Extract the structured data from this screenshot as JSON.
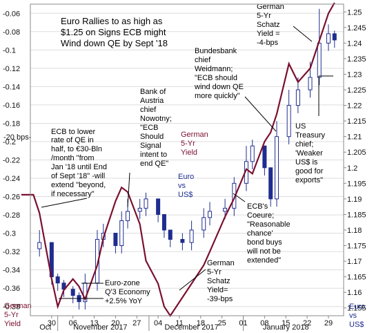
{
  "chart_data": {
    "type": "line",
    "title": "Euro Rallies to as high as $1.25 on Signs ECB might Wind down QE by Sept '18",
    "left_axis_label": "German 5-Yr Yield",
    "right_axis_label": "Euro vs US$",
    "left_unit": "-20 bps-",
    "left_ticks": [
      "-0.06",
      "-0.08",
      "-0.1",
      "-0.12",
      "-0.14",
      "-0.16",
      "-0.18",
      "-0.2",
      "-0.22",
      "-0.24",
      "-0.26",
      "-0.28",
      "-0.3",
      "-0.32",
      "-0.34",
      "-0.36",
      "-0.38"
    ],
    "right_ticks": [
      "1.25",
      "1.245",
      "1.24",
      "1.235",
      "1.23",
      "1.225",
      "1.22",
      "1.215",
      "1.21",
      "1.205",
      "1.2",
      "1.195",
      "1.19",
      "1.185",
      "1.18",
      "1.175",
      "1.17",
      "1.165",
      "1.16",
      "1.155"
    ],
    "ylim_left": [
      -0.39,
      -0.05
    ],
    "ylim_right": [
      1.1525,
      1.2525
    ],
    "x_day_labels": [
      "30",
      "06",
      "13",
      "20",
      "27",
      "04",
      "11",
      "18",
      "25",
      "01",
      "08",
      "15",
      "22",
      "29"
    ],
    "x_month_labels": [
      "Oct",
      "November 2017",
      "December 2017",
      "January 2018"
    ],
    "series": [
      {
        "name": "German 5-Yr Yield",
        "color": "#7a0f2e",
        "axis": "left",
        "dates": [
          "2017-10-20",
          "2017-10-24",
          "2017-10-26",
          "2017-10-30",
          "2017-11-01",
          "2017-11-03",
          "2017-11-06",
          "2017-11-08",
          "2017-11-10",
          "2017-11-14",
          "2017-11-16",
          "2017-11-20",
          "2017-11-22",
          "2017-11-24",
          "2017-11-28",
          "2017-11-30",
          "2017-12-04",
          "2017-12-06",
          "2017-12-08",
          "2017-12-12",
          "2017-12-15",
          "2017-12-19",
          "2017-12-21",
          "2017-12-26",
          "2017-12-29",
          "2018-01-02",
          "2018-01-04",
          "2018-01-08",
          "2018-01-10",
          "2018-01-12",
          "2018-01-16",
          "2018-01-19",
          "2018-01-23",
          "2018-01-26",
          "2018-01-29",
          "2018-01-31"
        ],
        "values": [
          -0.258,
          -0.258,
          -0.278,
          -0.35,
          -0.38,
          -0.362,
          -0.35,
          -0.358,
          -0.372,
          -0.335,
          -0.305,
          -0.265,
          -0.25,
          -0.255,
          -0.29,
          -0.33,
          -0.355,
          -0.38,
          -0.39,
          -0.37,
          -0.355,
          -0.335,
          -0.32,
          -0.282,
          -0.262,
          -0.23,
          -0.235,
          -0.2,
          -0.19,
          -0.17,
          -0.115,
          -0.135,
          -0.12,
          -0.09,
          -0.06,
          -0.038
        ]
      },
      {
        "name": "Euro vs US$",
        "color": "#1f2d8f",
        "axis": "right",
        "style": "candlestick",
        "dates": [
          "2017-10-26",
          "2017-10-30",
          "2017-11-01",
          "2017-11-03",
          "2017-11-06",
          "2017-11-08",
          "2017-11-10",
          "2017-11-14",
          "2017-11-16",
          "2017-11-20",
          "2017-11-22",
          "2017-11-24",
          "2017-11-28",
          "2017-11-30",
          "2017-12-04",
          "2017-12-06",
          "2017-12-08",
          "2017-12-12",
          "2017-12-15",
          "2017-12-19",
          "2017-12-21",
          "2017-12-26",
          "2017-12-29",
          "2018-01-02",
          "2018-01-04",
          "2018-01-08",
          "2018-01-10",
          "2018-01-12",
          "2018-01-16",
          "2018-01-19",
          "2018-01-23",
          "2018-01-26",
          "2018-01-29",
          "2018-01-31"
        ],
        "close": [
          1.176,
          1.165,
          1.163,
          1.161,
          1.159,
          1.157,
          1.163,
          1.177,
          1.179,
          1.175,
          1.183,
          1.186,
          1.187,
          1.19,
          1.185,
          1.18,
          1.177,
          1.176,
          1.18,
          1.184,
          1.186,
          1.187,
          1.195,
          1.202,
          1.207,
          1.2,
          1.19,
          1.21,
          1.22,
          1.225,
          1.229,
          1.24,
          1.243,
          1.241
        ],
        "high": [
          1.18,
          1.173,
          1.166,
          1.164,
          1.162,
          1.16,
          1.166,
          1.18,
          1.182,
          1.179,
          1.186,
          1.19,
          1.19,
          1.192,
          1.19,
          1.184,
          1.18,
          1.179,
          1.183,
          1.187,
          1.189,
          1.19,
          1.197,
          1.207,
          1.209,
          1.207,
          1.196,
          1.215,
          1.225,
          1.229,
          1.234,
          1.251,
          1.246,
          1.244
        ]
      }
    ]
  },
  "annotations": {
    "title": [
      "Euro Rallies to as high as",
      "$1.25 on Signs ECB might",
      "Wind down QE by Sept '18"
    ],
    "ecb_lower": [
      "ECB to lower",
      "rate of QE in",
      "half, to €30-Bln",
      "/month \"from",
      "Jan '18 until End",
      "of Sept '18\" -will",
      "extend \"beyond,",
      "if necessary\""
    ],
    "austria": [
      "Bank of",
      "Austria",
      "chief",
      "Nowotny;",
      "\"ECB",
      "Should",
      "Signal",
      "intent to",
      "end QE\""
    ],
    "bundesbank": [
      "Bundesbank",
      "chief",
      "Weidmann;",
      "\"ECB  should",
      "wind down QE",
      "more quickly\""
    ],
    "schatz_top": [
      "German",
      "5-Yr",
      "Schatz",
      "Yield =",
      "-4-bps"
    ],
    "ust": [
      "US",
      "Treasury",
      "chief;",
      "'Weaker",
      "US$ is",
      "good for",
      "exports\""
    ],
    "german5_mid": [
      "German",
      "5-Yr",
      "Yield"
    ],
    "euro_mid": [
      "Euro",
      "vs",
      "US$"
    ],
    "coeure": [
      "ECB's",
      "Coeure;",
      "\"Reasonable",
      "chance'",
      "bond buys",
      "will not be",
      "extended\""
    ],
    "schatz_bottom": [
      "German",
      "5-Yr",
      "Schatz",
      "Yield=",
      "-39-bps"
    ],
    "q3": [
      "Euro-zone",
      "Q'3 Economy",
      "+2.5% YoY"
    ]
  }
}
